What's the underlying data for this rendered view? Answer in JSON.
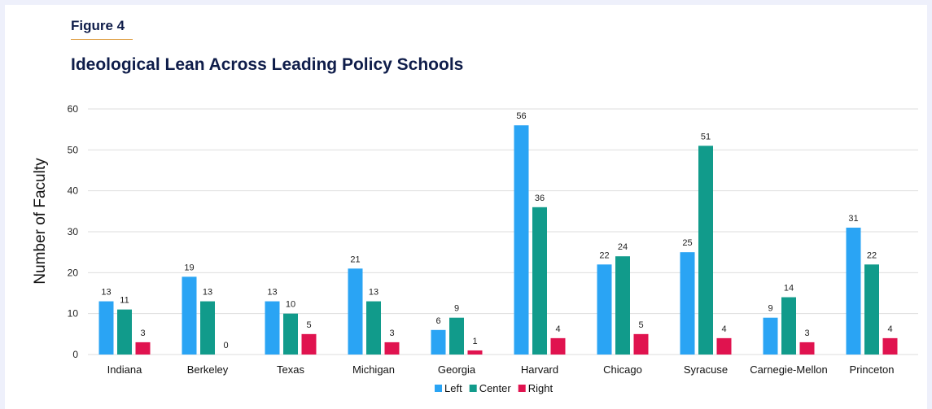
{
  "figure_label": "Figure 4",
  "chart_data": {
    "type": "bar",
    "title": "Ideological Lean Across Leading Policy Schools",
    "xlabel": "",
    "ylabel": "Number of Faculty",
    "ylim": [
      0,
      60
    ],
    "yticks": [
      0,
      10,
      20,
      30,
      40,
      50,
      60
    ],
    "grid": true,
    "legend_position": "bottom",
    "categories": [
      "Indiana",
      "Berkeley",
      "Texas",
      "Michigan",
      "Georgia",
      "Harvard",
      "Chicago",
      "Syracuse",
      "Carnegie-Mellon",
      "Princeton"
    ],
    "series": [
      {
        "name": "Left",
        "color": "#2aa4f4",
        "values": [
          13,
          19,
          13,
          21,
          6,
          56,
          22,
          25,
          9,
          31
        ]
      },
      {
        "name": "Center",
        "color": "#119b8b",
        "values": [
          11,
          13,
          10,
          13,
          9,
          36,
          24,
          51,
          14,
          22
        ]
      },
      {
        "name": "Right",
        "color": "#e0134f",
        "values": [
          3,
          0,
          5,
          3,
          1,
          4,
          5,
          4,
          3,
          4
        ]
      }
    ]
  }
}
